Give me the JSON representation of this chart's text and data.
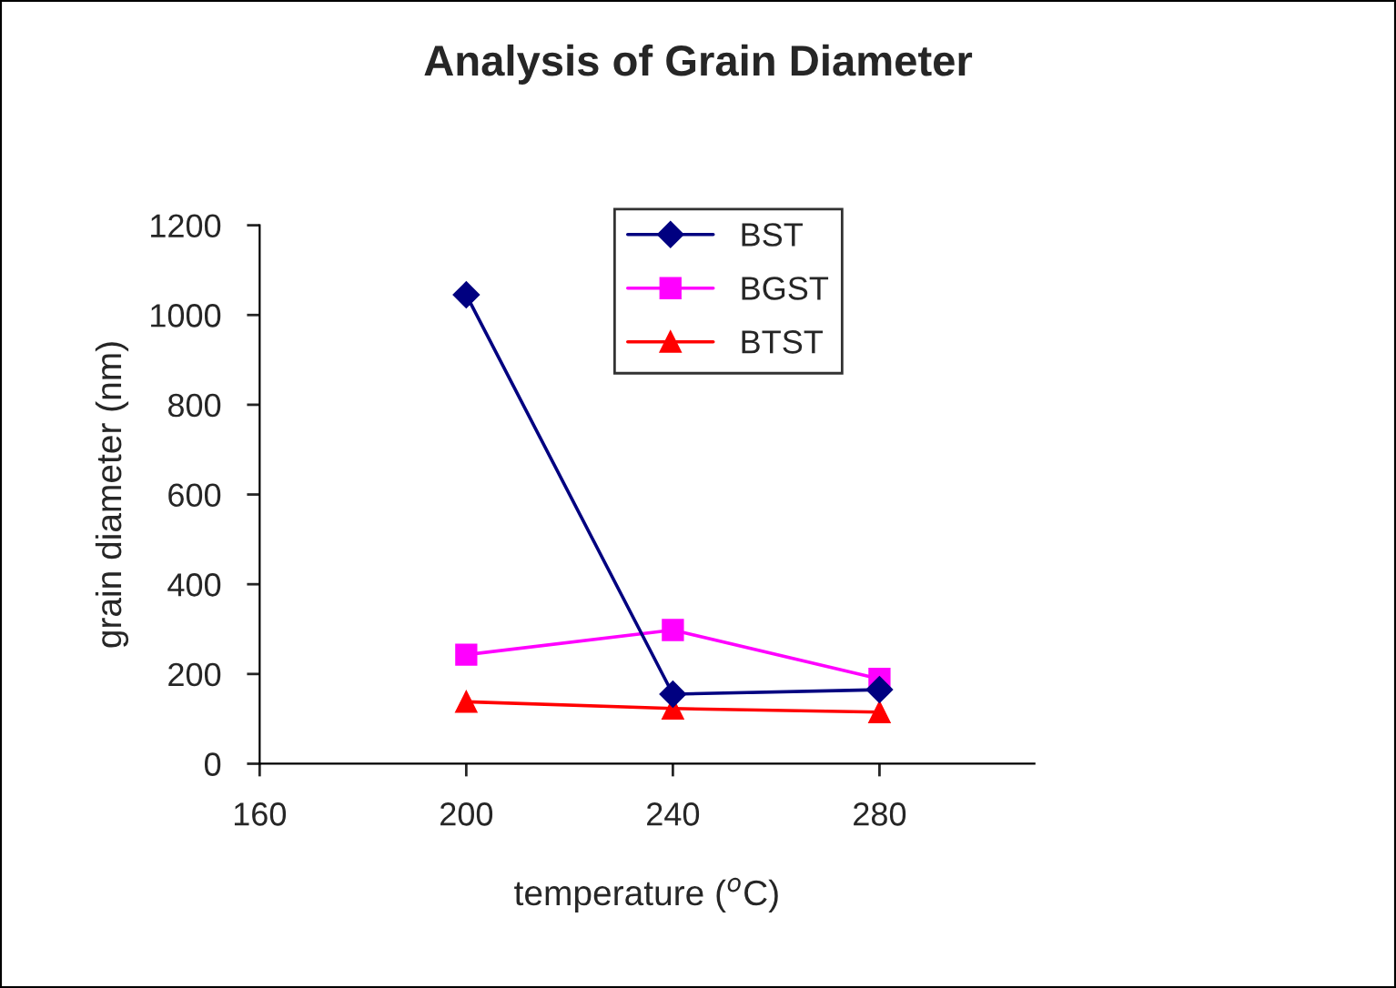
{
  "chart_data": {
    "type": "line",
    "title": "Analysis of Grain Diameter",
    "xlabel": "temperature ($^{o}$C)",
    "ylabel": "grain diameter (nm)",
    "x": [
      200,
      240,
      280
    ],
    "series": [
      {
        "name": "BST",
        "color": "#000080",
        "marker": "diamond",
        "values": [
          1045,
          155,
          165
        ]
      },
      {
        "name": "BGST",
        "color": "#ff00ff",
        "marker": "square",
        "values": [
          243,
          298,
          189
        ]
      },
      {
        "name": "BTST",
        "color": "#ff0000",
        "marker": "triangle",
        "values": [
          138,
          123,
          115
        ]
      }
    ],
    "xlim": [
      160,
      310
    ],
    "xticks": [
      160,
      200,
      240,
      280
    ],
    "ylim": [
      0,
      1200
    ],
    "yticks": [
      0,
      200,
      400,
      600,
      800,
      1000,
      1200
    ],
    "grid": false,
    "legend": "top right",
    "line_style": "solid"
  }
}
